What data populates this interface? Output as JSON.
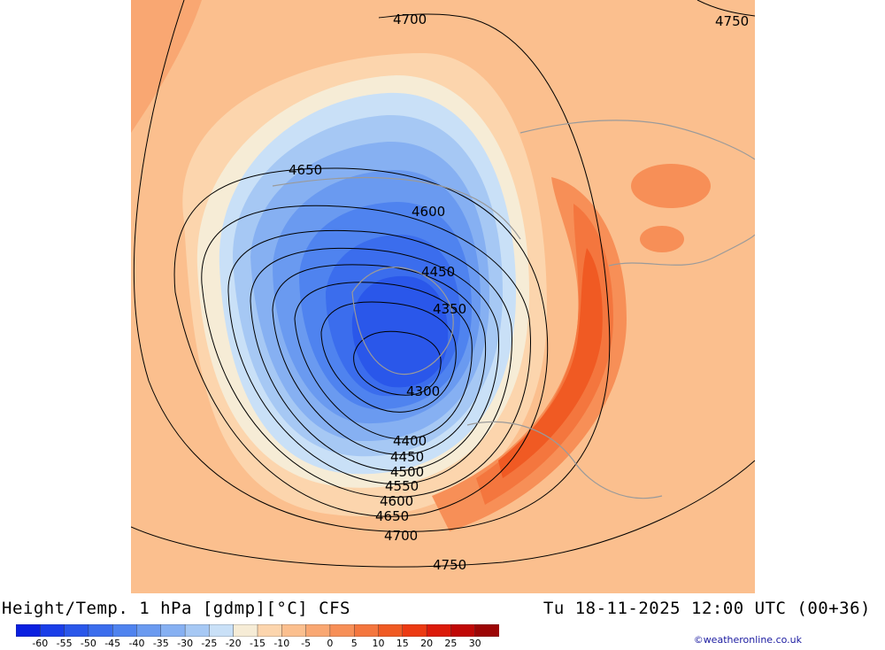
{
  "title_left": "Height/Temp. 1 hPa [gdmp][°C] CFS",
  "title_right": "Tu 18-11-2025 12:00 UTC (00+36)",
  "credit": "©weatheronline.co.uk",
  "colorbar": {
    "labels": [
      "-60",
      "-55",
      "-50",
      "-45",
      "-40",
      "-35",
      "-30",
      "-25",
      "-20",
      "-15",
      "-10",
      "-5",
      "0",
      "5",
      "10",
      "15",
      "20",
      "25",
      "30"
    ],
    "colors": [
      "#0a1fe0",
      "#1a3ee8",
      "#2a57ea",
      "#3b6ded",
      "#4f83ef",
      "#6a9af0",
      "#86b0f2",
      "#a6c8f4",
      "#c9e0f7",
      "#f6ecd6",
      "#fcd5ad",
      "#fbbf8e",
      "#f9a772",
      "#f78f57",
      "#f4763e",
      "#f05a23",
      "#ec3a12",
      "#dc1a0a",
      "#c00806",
      "#9c0505"
    ]
  },
  "contours": {
    "c4700_top": "4700",
    "c4750_tr": "4750",
    "c4650_top": "4650",
    "c4600_top": "4600",
    "c4450_top": "4450",
    "c4350_top": "4350",
    "c4300": "4300",
    "c4400_b": "4400",
    "c4450_b": "4450",
    "c4500_b": "4500",
    "c4550_b": "4550",
    "c4600_b": "4600",
    "c4650_b": "4650",
    "c4700_b": "4700",
    "c4750_b": "4750"
  }
}
